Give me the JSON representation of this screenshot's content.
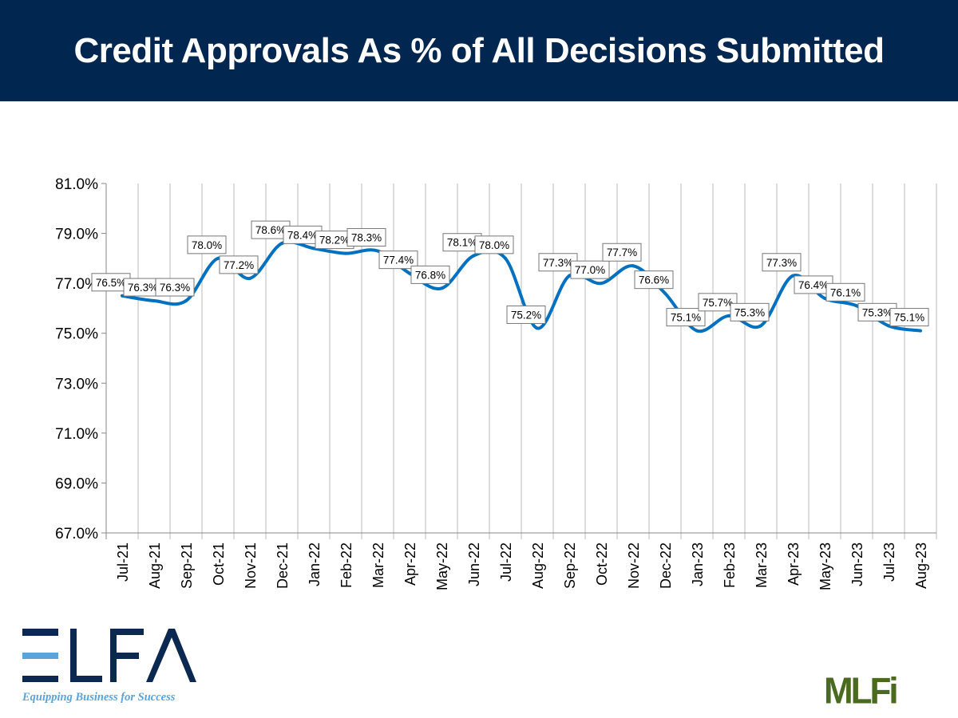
{
  "header": {
    "title": "Credit Approvals As % of All Decisions Submitted"
  },
  "logos": {
    "elfa": "ELFA",
    "elfa_tagline": "Equipping Business for Success",
    "mlfi": "MLFi"
  },
  "chart_data": {
    "type": "line",
    "title": "Credit Approvals As % of All Decisions Submitted",
    "xlabel": "",
    "ylabel": "",
    "ylim": [
      67.0,
      81.0
    ],
    "yticks": [
      "67.0%",
      "69.0%",
      "71.0%",
      "73.0%",
      "75.0%",
      "77.0%",
      "79.0%",
      "81.0%"
    ],
    "grid": "vertical",
    "line_color": "#0070c0",
    "categories": [
      "Jul-21",
      "Aug-21",
      "Sep-21",
      "Oct-21",
      "Nov-21",
      "Dec-21",
      "Jan-22",
      "Feb-22",
      "Mar-22",
      "Apr-22",
      "May-22",
      "Jun-22",
      "Jul-22",
      "Aug-22",
      "Sep-22",
      "Oct-22",
      "Nov-22",
      "Dec-22",
      "Jan-23",
      "Feb-23",
      "Mar-23",
      "Apr-23",
      "May-23",
      "Jun-23",
      "Jul-23",
      "Aug-23"
    ],
    "values": [
      76.5,
      76.3,
      76.3,
      78.0,
      77.2,
      78.6,
      78.4,
      78.2,
      78.3,
      77.4,
      76.8,
      78.1,
      78.0,
      75.2,
      77.3,
      77.0,
      77.7,
      76.6,
      75.1,
      75.7,
      75.3,
      77.3,
      76.4,
      76.1,
      75.3,
      75.1
    ],
    "labels": [
      "76.5%",
      "76.3%",
      "76.3%",
      "78.0%",
      "77.2%",
      "78.6%",
      "78.4%",
      "78.2%",
      "78.3%",
      "77.4%",
      "76.8%",
      "78.1%",
      "78.0%",
      "75.2%",
      "77.3%",
      "77.0%",
      "77.7%",
      "76.6%",
      "75.1%",
      "75.7%",
      "75.3%",
      "77.3%",
      "76.4%",
      "76.1%",
      "75.3%",
      "75.1%"
    ]
  }
}
